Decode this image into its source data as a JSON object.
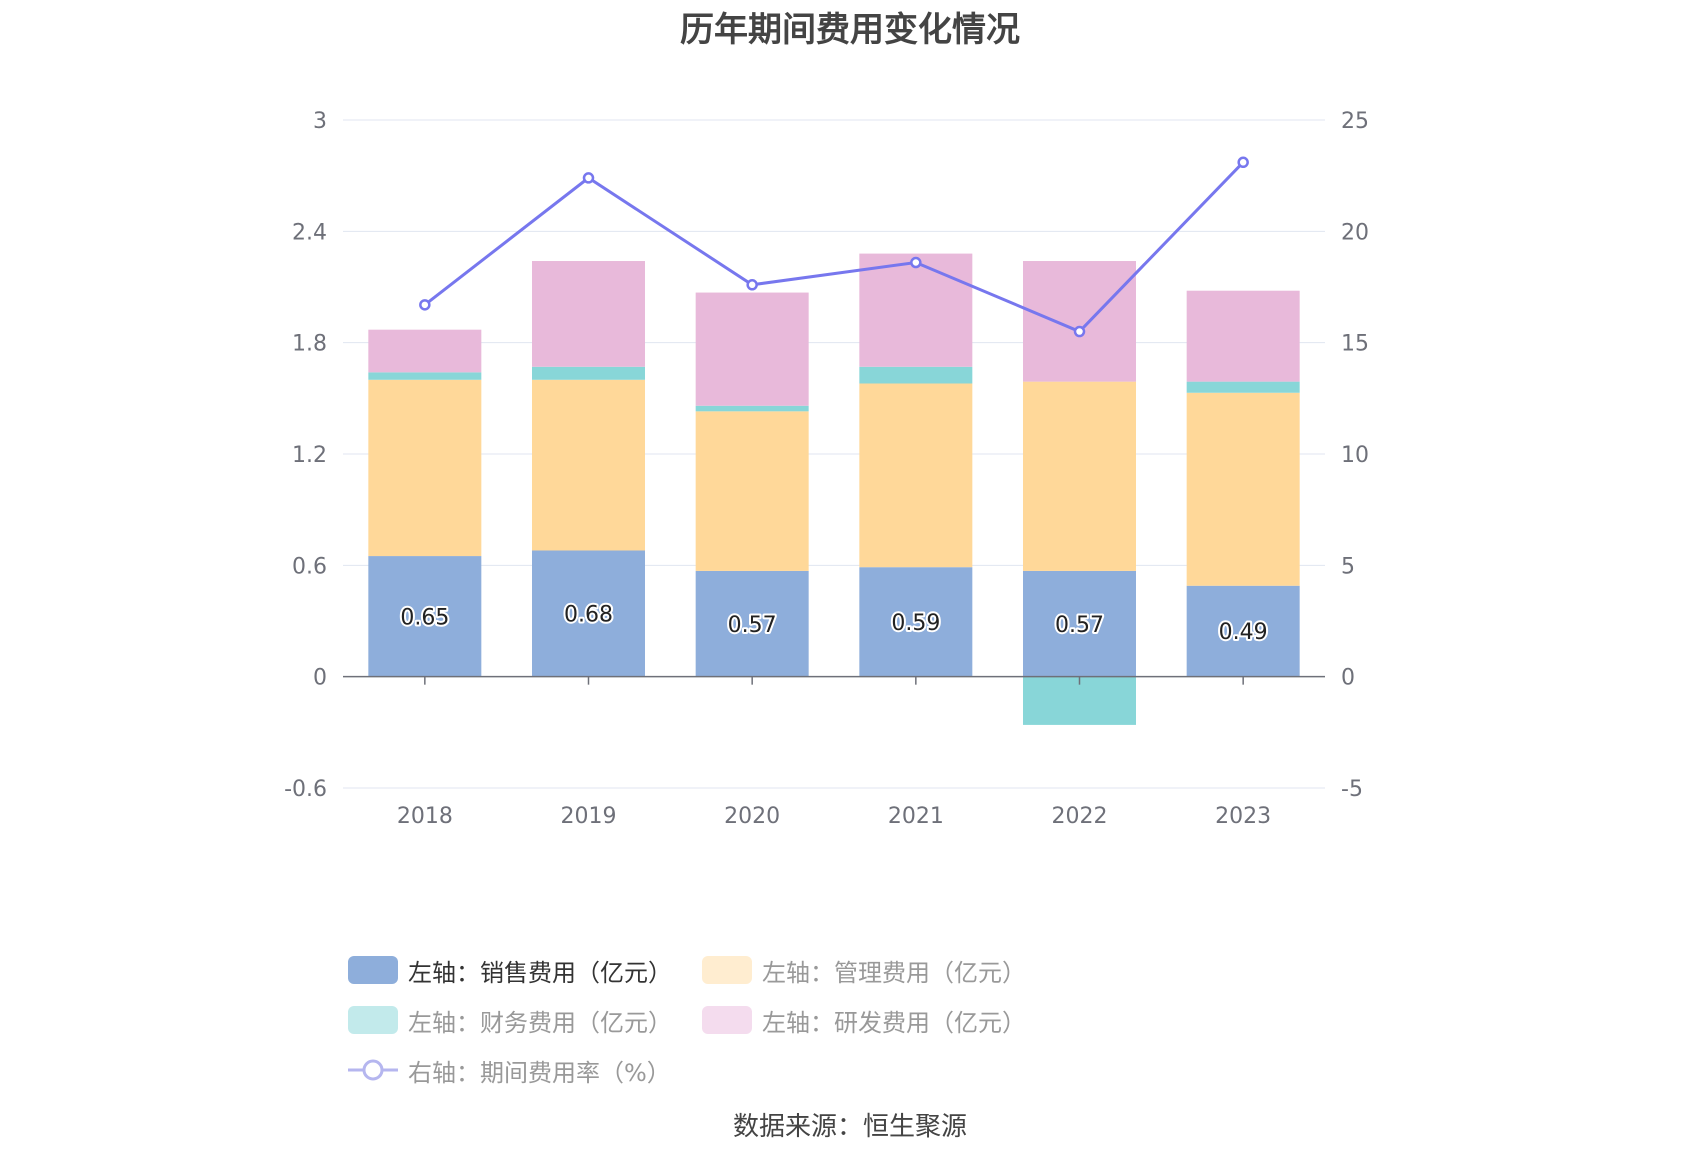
{
  "title": "历年期间费用变化情况",
  "source": "数据来源：恒生聚源",
  "colors": {
    "sales": "#8eaedb",
    "admin": "#ffd899",
    "finance": "#88d6d8",
    "rnd": "#e8b9da",
    "rate_line": "#7777ee",
    "grid": "#e0e6f1",
    "axis": "#6e7079"
  },
  "legend": [
    {
      "key": "sales",
      "label": "左轴：销售费用（亿元）",
      "icon": "bar-swatch",
      "active": true
    },
    {
      "key": "admin",
      "label": "左轴：管理费用（亿元）",
      "icon": "bar-swatch",
      "active": false
    },
    {
      "key": "finance",
      "label": "左轴：财务费用（亿元）",
      "icon": "bar-swatch",
      "active": false
    },
    {
      "key": "rnd",
      "label": "左轴：研发费用（亿元）",
      "icon": "bar-swatch",
      "active": false
    },
    {
      "key": "rate",
      "label": "右轴：期间费用率（%）",
      "icon": "line-circle-icon",
      "active": false
    }
  ],
  "chart_data": {
    "type": "bar",
    "stacked": true,
    "title": "历年期间费用变化情况",
    "categories": [
      "2018",
      "2019",
      "2020",
      "2021",
      "2022",
      "2023"
    ],
    "y_left": {
      "min": -0.6,
      "max": 3,
      "ticks": [
        "-0.6",
        "0",
        "0.6",
        "1.2",
        "1.8",
        "2.4",
        "3"
      ],
      "tick_values": [
        -0.6,
        0,
        0.6,
        1.2,
        1.8,
        2.4,
        3
      ]
    },
    "y_right": {
      "min": -5,
      "max": 25,
      "ticks": [
        "-5",
        "0",
        "5",
        "10",
        "15",
        "20",
        "25"
      ],
      "tick_values": [
        -5,
        0,
        5,
        10,
        15,
        20,
        25
      ]
    },
    "series": [
      {
        "key": "sales",
        "name": "左轴：销售费用（亿元）",
        "axis": "left",
        "type": "bar",
        "values": [
          0.65,
          0.68,
          0.57,
          0.59,
          0.57,
          0.49
        ],
        "labels": [
          "0.65",
          "0.68",
          "0.57",
          "0.59",
          "0.57",
          "0.49"
        ]
      },
      {
        "key": "admin",
        "name": "左轴：管理费用（亿元）",
        "axis": "left",
        "type": "bar",
        "values": [
          0.95,
          0.92,
          0.86,
          0.99,
          1.02,
          1.04
        ]
      },
      {
        "key": "finance",
        "name": "左轴：财务费用（亿元）",
        "axis": "left",
        "type": "bar",
        "values": [
          0.04,
          0.07,
          0.03,
          0.09,
          -0.26,
          0.06
        ]
      },
      {
        "key": "rnd",
        "name": "左轴：研发费用（亿元）",
        "axis": "left",
        "type": "bar",
        "values": [
          0.23,
          0.57,
          0.61,
          0.61,
          0.65,
          0.49
        ]
      },
      {
        "key": "rate",
        "name": "右轴：期间费用率（%）",
        "axis": "right",
        "type": "line",
        "values": [
          16.7,
          22.4,
          17.6,
          18.6,
          15.5,
          23.1
        ]
      }
    ],
    "grid": true
  }
}
